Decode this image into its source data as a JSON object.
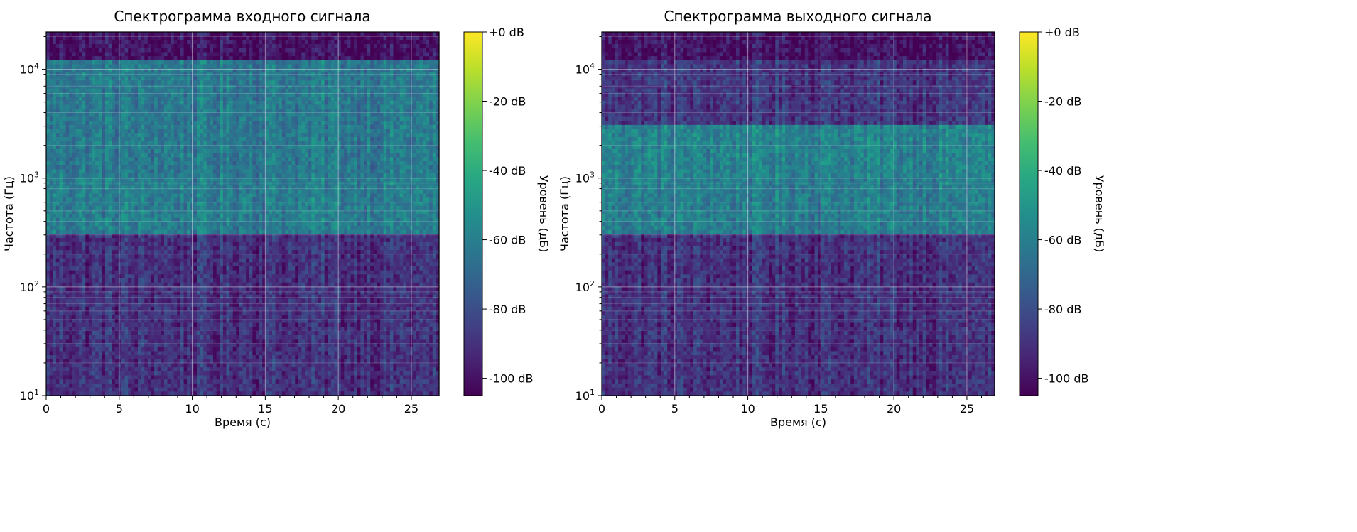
{
  "chart_data": [
    {
      "type": "heatmap",
      "title": "Спектрограмма входного сигнала",
      "xlabel": "Время (с)",
      "ylabel": "Частота (Гц)",
      "xlim": [
        0,
        26.9
      ],
      "ylim": [
        10,
        22050
      ],
      "yscale": "log",
      "grid": true,
      "x_ticks": [
        "0",
        "5",
        "10",
        "15",
        "20",
        "25"
      ],
      "y_ticks": [
        "10",
        "10",
        "10",
        "10"
      ],
      "y_tick_exponents": [
        "1",
        "2",
        "3",
        "4"
      ],
      "colorbar": {
        "label": "Уровень (дБ)",
        "ticks": [
          "+0 dB",
          "-20 dB",
          "-40 dB",
          "-60 dB",
          "-80 dB",
          "-100 dB"
        ],
        "range": [
          -105,
          0
        ],
        "colormap": "viridis"
      },
      "bands": [
        {
          "f_low": 10,
          "f_high": 300,
          "level_db": -90
        },
        {
          "f_low": 300,
          "f_high": 1000,
          "level_db": -60
        },
        {
          "f_low": 1000,
          "f_high": 3000,
          "level_db": -62
        },
        {
          "f_low": 3000,
          "f_high": 12000,
          "level_db": -62
        },
        {
          "f_low": 12000,
          "f_high": 22050,
          "level_db": -100
        }
      ]
    },
    {
      "type": "heatmap",
      "title": "Спектрограмма выходного сигнала",
      "xlabel": "Время (с)",
      "ylabel": "Частота (Гц)",
      "xlim": [
        0,
        26.9
      ],
      "ylim": [
        10,
        22050
      ],
      "yscale": "log",
      "grid": true,
      "x_ticks": [
        "0",
        "5",
        "10",
        "15",
        "20",
        "25"
      ],
      "y_ticks": [
        "10",
        "10",
        "10",
        "10"
      ],
      "y_tick_exponents": [
        "1",
        "2",
        "3",
        "4"
      ],
      "colorbar": {
        "label": "Уровень (дБ)",
        "ticks": [
          "+0 dB",
          "-20 dB",
          "-40 dB",
          "-60 dB",
          "-80 dB",
          "-100 dB"
        ],
        "range": [
          -105,
          0
        ],
        "colormap": "viridis"
      },
      "bands": [
        {
          "f_low": 10,
          "f_high": 300,
          "level_db": -90
        },
        {
          "f_low": 300,
          "f_high": 1000,
          "level_db": -60
        },
        {
          "f_low": 1000,
          "f_high": 3000,
          "level_db": -58
        },
        {
          "f_low": 3000,
          "f_high": 12000,
          "level_db": -88
        },
        {
          "f_low": 12000,
          "f_high": 22050,
          "level_db": -100
        }
      ]
    }
  ]
}
